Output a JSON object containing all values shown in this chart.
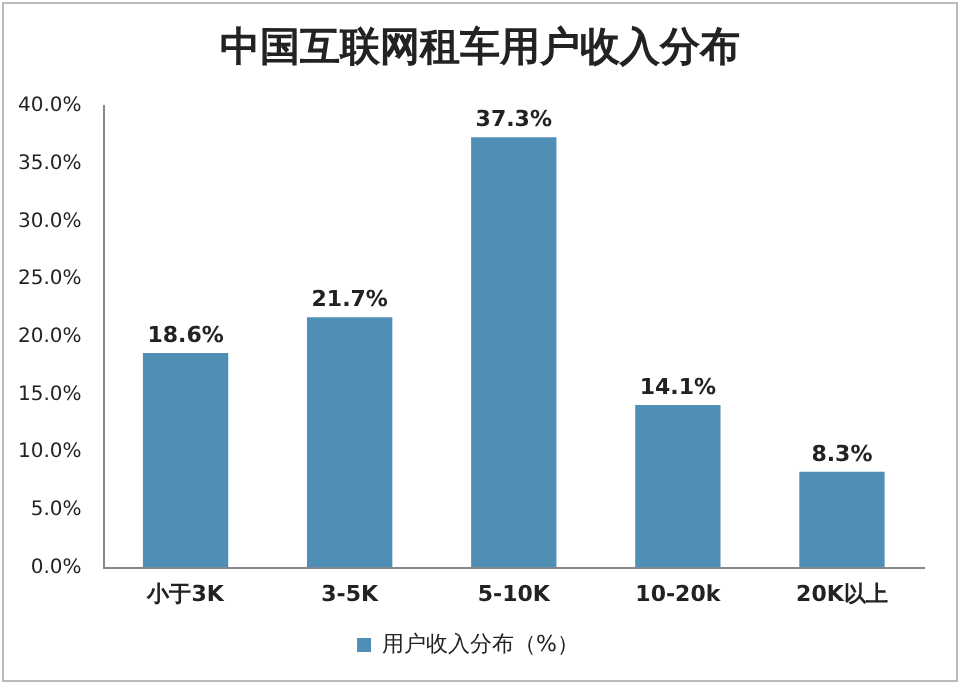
{
  "chart_data": {
    "type": "bar",
    "title": "中国互联网租车用户收入分布",
    "categories": [
      "小于3K",
      "3-5K",
      "5-10K",
      "10-20k",
      "20K以上"
    ],
    "series": [
      {
        "name": "用户收入分布（%）",
        "color": "#4f8fb5",
        "values": [
          18.6,
          21.7,
          37.3,
          14.1,
          8.3
        ],
        "value_labels": [
          "18.6%",
          "21.7%",
          "37.3%",
          "14.1%",
          "8.3%"
        ]
      }
    ],
    "ylim": [
      0,
      40
    ],
    "yticks": [
      {
        "value": 0,
        "label": "0.0%"
      },
      {
        "value": 5,
        "label": "5.0%"
      },
      {
        "value": 10,
        "label": "10.0%"
      },
      {
        "value": 15,
        "label": "15.0%"
      },
      {
        "value": 20,
        "label": "20.0%"
      },
      {
        "value": 25,
        "label": "25.0%"
      },
      {
        "value": 30,
        "label": "30.0%"
      },
      {
        "value": 35,
        "label": "35.0%"
      },
      {
        "value": 40,
        "label": "40.0%"
      }
    ],
    "grid": false,
    "legend": "bottom"
  }
}
